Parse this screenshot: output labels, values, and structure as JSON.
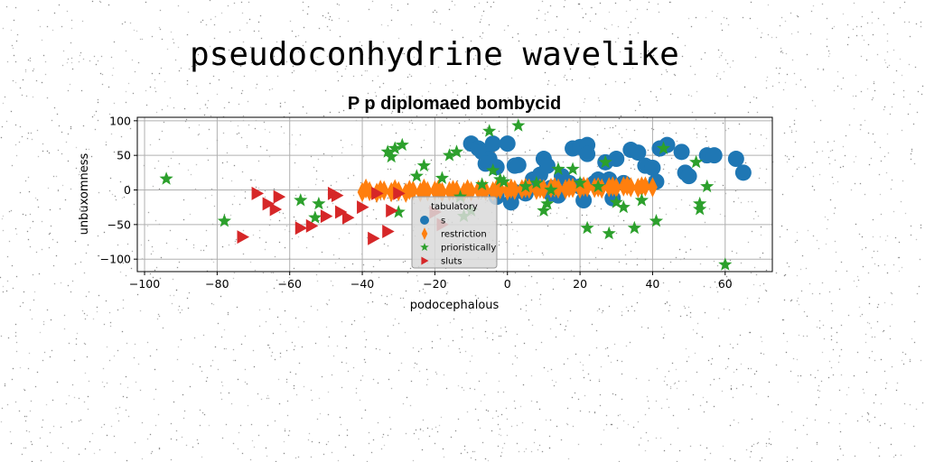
{
  "page": {
    "title": "pseudoconhydrine wavelike"
  },
  "chart_data": {
    "type": "scatter",
    "title": "P p diplomaed bombycid",
    "xlabel": "podocephalous",
    "ylabel": "unbuxomness",
    "xlim": [
      -102,
      73
    ],
    "ylim": [
      -118,
      105
    ],
    "xticks": [
      -100,
      -80,
      -60,
      -40,
      -20,
      0,
      20,
      40,
      60
    ],
    "yticks": [
      -100,
      -50,
      0,
      50,
      100
    ],
    "grid": true,
    "legend": {
      "title": "tabulatory",
      "placement": "bottom-center"
    },
    "colors": {
      "s": "#1f77b4",
      "restriction": "#ff7f0e",
      "prioristically": "#2ca02c",
      "sluts": "#d62728"
    },
    "series": [
      {
        "name": "s",
        "marker": "circle",
        "x": [
          -10,
          -8,
          -7,
          -5,
          -6,
          -4,
          -3,
          0,
          1,
          2,
          3,
          5,
          7,
          9,
          10,
          11,
          12,
          14,
          15,
          17,
          18,
          20,
          21,
          22,
          22,
          24,
          25,
          27,
          28,
          29,
          30,
          32,
          34,
          36,
          38,
          40,
          41,
          42,
          44,
          48,
          49,
          50,
          55,
          57,
          63,
          65,
          -3,
          2,
          12,
          20
        ],
        "y": [
          67,
          60,
          55,
          45,
          38,
          67,
          33,
          67,
          -18,
          35,
          36,
          -5,
          15,
          22,
          45,
          35,
          -5,
          -8,
          20,
          10,
          60,
          62,
          -15,
          65,
          52,
          10,
          15,
          40,
          15,
          -12,
          45,
          10,
          58,
          54,
          35,
          32,
          12,
          60,
          65,
          55,
          25,
          20,
          50,
          50,
          45,
          25,
          -10,
          -3,
          3,
          5
        ]
      },
      {
        "name": "restriction",
        "marker": "diamond",
        "x": [
          -40,
          -38,
          -36,
          -34,
          -32,
          -30,
          -28,
          -26,
          -24,
          -22,
          -20,
          -18,
          -16,
          -14,
          -12,
          -10,
          -8,
          -6,
          -4,
          -2,
          0,
          2,
          4,
          6,
          8,
          10,
          12,
          14,
          16,
          18,
          20,
          22,
          24,
          26,
          28,
          30,
          32,
          34,
          36,
          38,
          40,
          -39,
          -35,
          -31,
          -27,
          -23,
          -19,
          -15,
          -11,
          -7,
          -3,
          1,
          5,
          9,
          13,
          17,
          21,
          25,
          29,
          33,
          37
        ],
        "y": [
          -3,
          -2,
          -4,
          -1,
          -3,
          -2,
          -4,
          -1,
          -3,
          -2,
          -1,
          -3,
          -2,
          -1,
          -3,
          -2,
          0,
          -1,
          -2,
          1,
          -1,
          0,
          1,
          2,
          0,
          1,
          3,
          2,
          1,
          3,
          2,
          4,
          3,
          2,
          4,
          3,
          5,
          4,
          3,
          5,
          4,
          2,
          0,
          1,
          0,
          2,
          1,
          0,
          1,
          2,
          1,
          2,
          3,
          2,
          4,
          3,
          5,
          4,
          5,
          6,
          5
        ]
      },
      {
        "name": "prioristically",
        "marker": "star",
        "x": [
          -94,
          -78,
          -57,
          -53,
          -52,
          -33,
          -32,
          -31,
          -30,
          -29,
          -25,
          -23,
          -18,
          -16,
          -14,
          -13,
          -12,
          -10,
          -7,
          -5,
          -4,
          -2,
          3,
          5,
          8,
          10,
          11,
          14,
          18,
          20,
          22,
          25,
          28,
          30,
          32,
          35,
          37,
          41,
          43,
          52,
          53,
          53,
          55,
          60,
          27,
          12,
          -1
        ],
        "y": [
          16,
          -45,
          -15,
          -40,
          -20,
          55,
          48,
          60,
          -32,
          65,
          20,
          35,
          17,
          50,
          55,
          -10,
          -38,
          -30,
          8,
          85,
          28,
          15,
          93,
          5,
          10,
          -30,
          -20,
          30,
          30,
          10,
          -55,
          5,
          -63,
          -18,
          -25,
          -55,
          -15,
          -45,
          60,
          40,
          -20,
          -28,
          5,
          -108,
          40,
          0,
          12
        ]
      },
      {
        "name": "sluts",
        "marker": "triangle-right",
        "x": [
          -73,
          -69,
          -66,
          -64,
          -63,
          -57,
          -54,
          -50,
          -48,
          -47,
          -46,
          -44,
          -40,
          -37,
          -36,
          -33,
          -32,
          -30,
          -20,
          -18
        ],
        "y": [
          -68,
          -5,
          -20,
          -28,
          -10,
          -55,
          -52,
          -38,
          -5,
          -8,
          -32,
          -40,
          -25,
          -70,
          -5,
          -60,
          -30,
          -5,
          -32,
          -50
        ]
      }
    ]
  }
}
